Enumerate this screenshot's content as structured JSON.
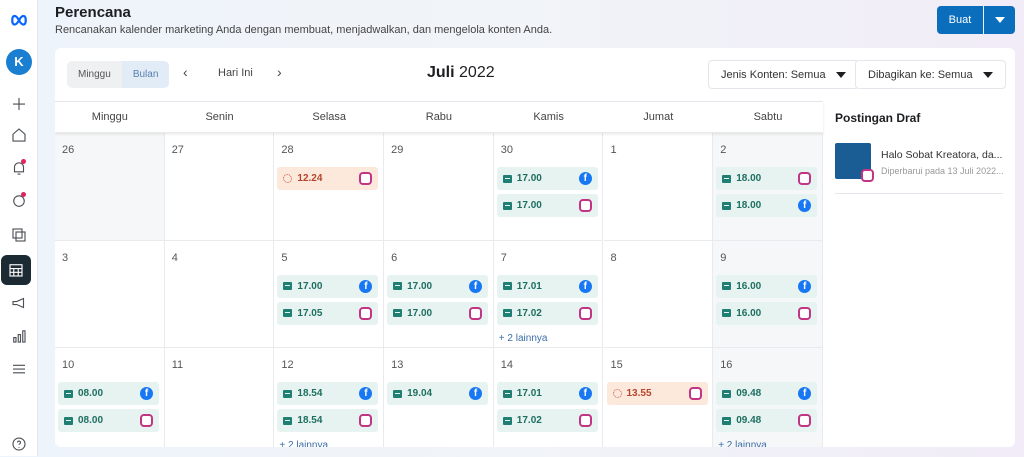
{
  "header": {
    "title": "Perencana",
    "subtitle": "Rencanakan kalender marketing Anda dengan membuat, menjadwalkan, dan mengelola konten Anda.",
    "create_label": "Buat"
  },
  "sidebar": {
    "items": [
      "meta-logo",
      "account-avatar",
      "plus",
      "home",
      "notifications",
      "messages",
      "content",
      "planner",
      "ads",
      "insights",
      "menu",
      "help"
    ]
  },
  "toolbar": {
    "view_week": "Minggu",
    "view_month": "Bulan",
    "today": "Hari Ini",
    "month": "Juli",
    "year": "2022",
    "filter_content": "Jenis Konten: Semua",
    "filter_shared": "Dibagikan ke: Semua"
  },
  "weekdays": [
    "Minggu",
    "Senin",
    "Selasa",
    "Rabu",
    "Kamis",
    "Jumat",
    "Sabtu"
  ],
  "colors": {
    "accent": "#0a6ebd",
    "scheduled": "#e6f3f0",
    "pending": "#fde8dc"
  },
  "weeks": [
    [
      {
        "day": "26",
        "events": []
      },
      {
        "day": "27",
        "events": []
      },
      {
        "day": "28",
        "events": [
          {
            "time": "12.24",
            "platform": "instagram",
            "status": "pending"
          }
        ]
      },
      {
        "day": "29",
        "events": []
      },
      {
        "day": "30",
        "events": [
          {
            "time": "17.00",
            "platform": "facebook",
            "status": "scheduled"
          },
          {
            "time": "17.00",
            "platform": "instagram",
            "status": "scheduled"
          }
        ]
      },
      {
        "day": "1",
        "events": []
      },
      {
        "day": "2",
        "events": [
          {
            "time": "18.00",
            "platform": "instagram",
            "status": "scheduled"
          },
          {
            "time": "18.00",
            "platform": "facebook",
            "status": "scheduled"
          }
        ]
      }
    ],
    [
      {
        "day": "3",
        "events": []
      },
      {
        "day": "4",
        "events": []
      },
      {
        "day": "5",
        "events": [
          {
            "time": "17.00",
            "platform": "facebook",
            "status": "scheduled"
          },
          {
            "time": "17.05",
            "platform": "instagram",
            "status": "scheduled"
          }
        ]
      },
      {
        "day": "6",
        "events": [
          {
            "time": "17.00",
            "platform": "facebook",
            "status": "scheduled"
          },
          {
            "time": "17.00",
            "platform": "instagram",
            "status": "scheduled"
          }
        ]
      },
      {
        "day": "7",
        "events": [
          {
            "time": "17.01",
            "platform": "facebook",
            "status": "scheduled"
          },
          {
            "time": "17.02",
            "platform": "instagram",
            "status": "scheduled"
          }
        ],
        "more": "+ 2 lainnya"
      },
      {
        "day": "8",
        "events": []
      },
      {
        "day": "9",
        "events": [
          {
            "time": "16.00",
            "platform": "facebook",
            "status": "scheduled"
          },
          {
            "time": "16.00",
            "platform": "instagram",
            "status": "scheduled"
          }
        ]
      }
    ],
    [
      {
        "day": "10",
        "events": [
          {
            "time": "08.00",
            "platform": "facebook",
            "status": "scheduled"
          },
          {
            "time": "08.00",
            "platform": "instagram",
            "status": "scheduled"
          }
        ]
      },
      {
        "day": "11",
        "events": []
      },
      {
        "day": "12",
        "events": [
          {
            "time": "18.54",
            "platform": "facebook",
            "status": "scheduled"
          },
          {
            "time": "18.54",
            "platform": "instagram",
            "status": "scheduled"
          }
        ],
        "more": "+ 2 lainnya"
      },
      {
        "day": "13",
        "events": [
          {
            "time": "19.04",
            "platform": "facebook",
            "status": "scheduled"
          }
        ]
      },
      {
        "day": "14",
        "events": [
          {
            "time": "17.01",
            "platform": "facebook",
            "status": "scheduled"
          },
          {
            "time": "17.02",
            "platform": "instagram",
            "status": "scheduled"
          }
        ]
      },
      {
        "day": "15",
        "events": [
          {
            "time": "13.55",
            "platform": "instagram",
            "status": "pending"
          }
        ]
      },
      {
        "day": "16",
        "events": [
          {
            "time": "09.48",
            "platform": "facebook",
            "status": "scheduled"
          },
          {
            "time": "09.48",
            "platform": "instagram",
            "status": "scheduled"
          }
        ],
        "more": "+ 2 lainnya"
      }
    ]
  ],
  "drafts": {
    "title": "Postingan Draf",
    "items": [
      {
        "text": "Halo Sobat Kreatora, da...",
        "updated": "Diperbarui pada 13 Juli 2022..."
      }
    ]
  }
}
